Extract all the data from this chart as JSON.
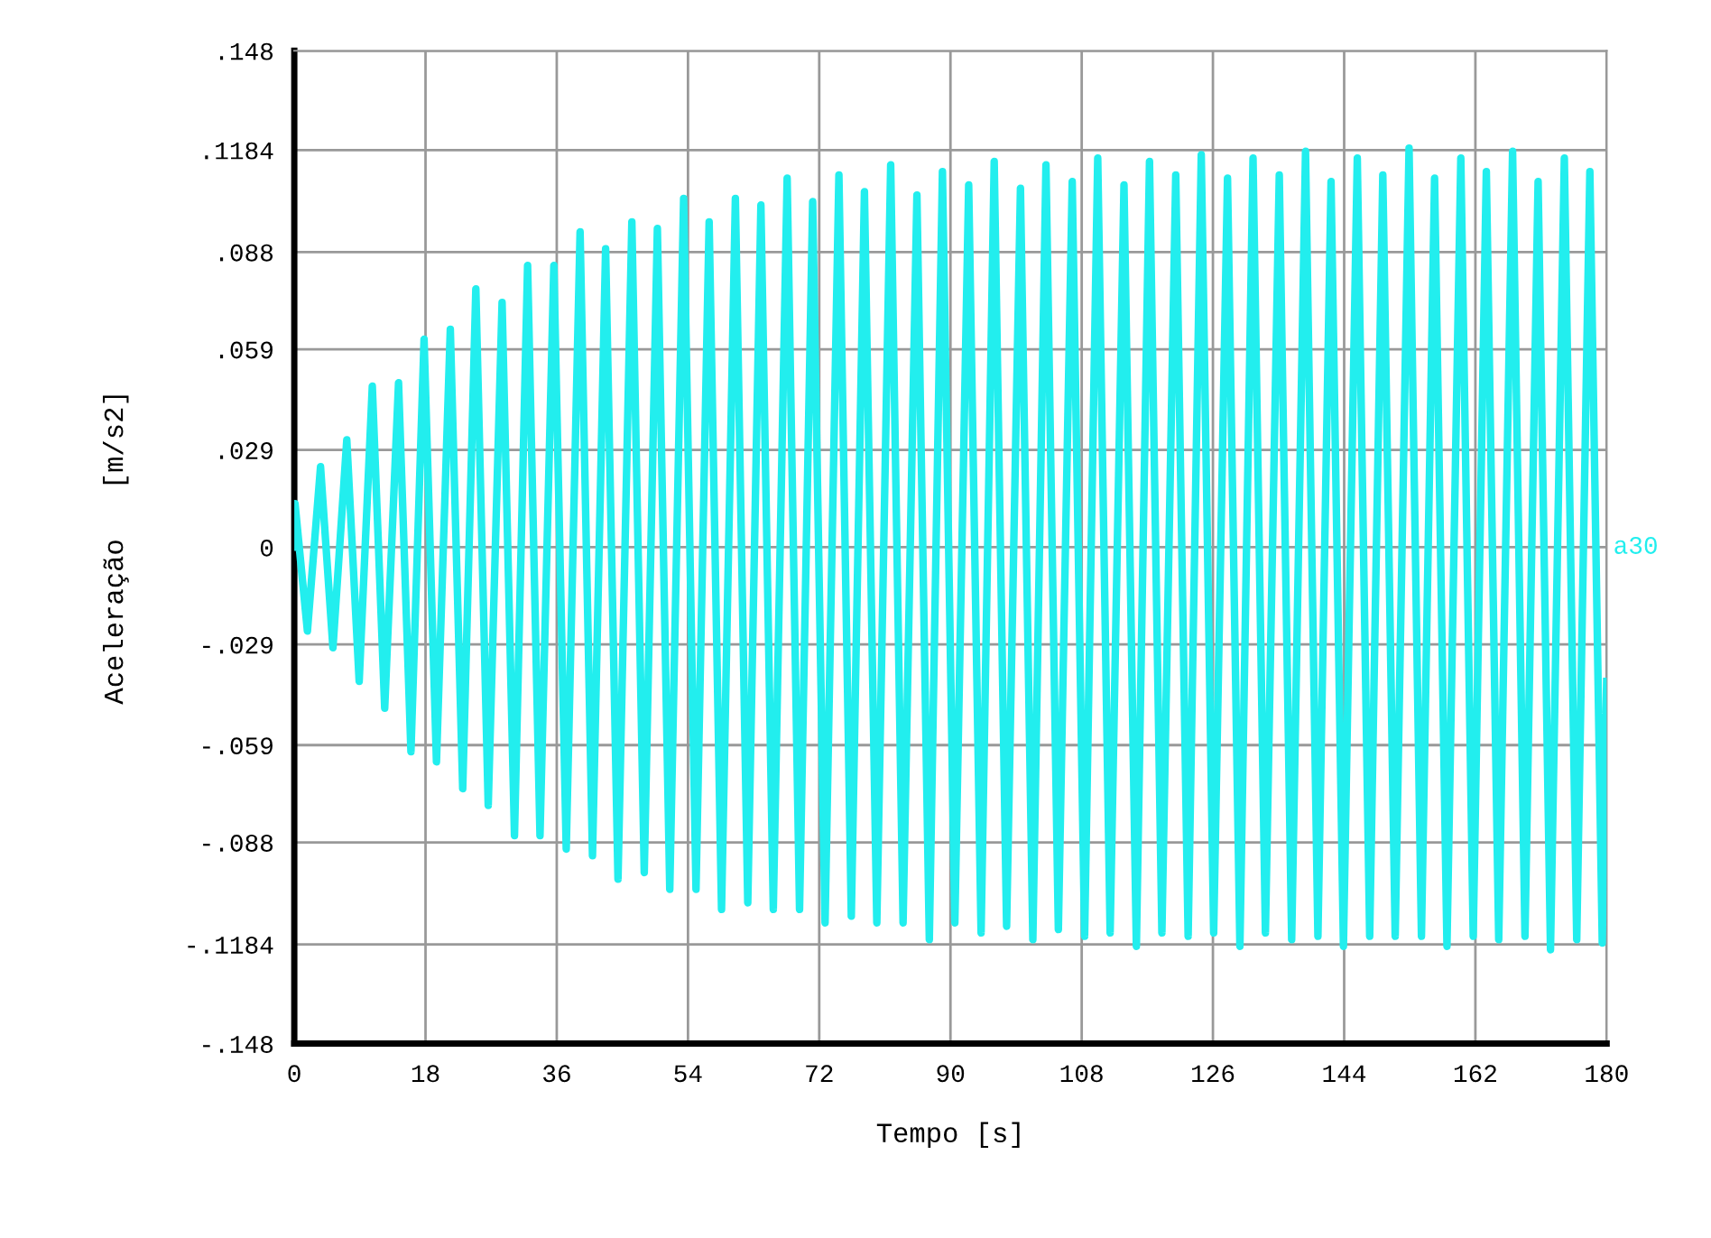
{
  "chart_data": {
    "type": "line",
    "xlabel": "Tempo [s]",
    "ylabel": "Aceleração   [m/s2]",
    "xlim": [
      0,
      180
    ],
    "xticks": [
      0,
      18,
      36,
      54,
      72,
      90,
      108,
      126,
      144,
      162,
      180
    ],
    "ylim": [
      -0.148,
      0.148
    ],
    "yticks": [
      {
        "value": -0.148,
        "label": "-.148"
      },
      {
        "value": -0.1184,
        "label": "-.1184"
      },
      {
        "value": -0.088,
        "label": "-.088"
      },
      {
        "value": -0.059,
        "label": "-.059"
      },
      {
        "value": -0.029,
        "label": "-.029"
      },
      0,
      {
        "value": 0.029,
        "label": ".029"
      },
      {
        "value": 0.059,
        "label": ".059"
      },
      {
        "value": 0.088,
        "label": ".088"
      },
      {
        "value": 0.1184,
        "label": ".1184"
      },
      {
        "value": 0.148,
        "label": ".148"
      }
    ],
    "grid": true,
    "marker": "none",
    "line_style": "solid",
    "series": [
      {
        "name": "a30",
        "color": "#22eeee",
        "x": [
          0,
          0.1,
          1.8,
          3.6,
          5.3,
          7.2,
          8.9,
          10.7,
          12.4,
          14.3,
          16.0,
          17.8,
          19.5,
          21.4,
          23.1,
          24.9,
          26.6,
          28.5,
          30.2,
          32.0,
          33.7,
          35.6,
          37.3,
          39.2,
          40.9,
          42.7,
          44.4,
          46.3,
          48.0,
          49.8,
          51.5,
          53.4,
          55.1,
          56.9,
          58.6,
          60.5,
          62.2,
          64.0,
          65.7,
          67.6,
          69.3,
          71.1,
          72.8,
          74.7,
          76.4,
          78.2,
          79.9,
          81.8,
          83.5,
          85.4,
          87.1,
          88.9,
          90.6,
          92.5,
          94.2,
          96.0,
          97.7,
          99.6,
          101.3,
          103.1,
          104.8,
          106.7,
          108.4,
          110.2,
          111.9,
          113.8,
          115.5,
          117.3,
          119.0,
          120.9,
          122.6,
          124.4,
          126.1,
          128.0,
          129.7,
          131.5,
          133.2,
          135.1,
          136.8,
          138.7,
          140.4,
          142.2,
          143.9,
          145.8,
          147.5,
          149.3,
          151.0,
          152.9,
          154.6,
          156.4,
          158.1,
          160.0,
          161.7,
          163.5,
          165.2,
          167.1,
          168.8,
          170.6,
          172.3,
          174.2,
          175.9,
          177.7,
          179.4,
          180
        ],
        "values": [
          0,
          0.013,
          -0.025,
          0.024,
          -0.03,
          0.032,
          -0.04,
          0.048,
          -0.048,
          0.049,
          -0.061,
          0.062,
          -0.064,
          0.065,
          -0.072,
          0.077,
          -0.077,
          0.073,
          -0.086,
          0.084,
          -0.086,
          0.084,
          -0.09,
          0.094,
          -0.092,
          0.089,
          -0.099,
          0.097,
          -0.097,
          0.095,
          -0.102,
          0.104,
          -0.102,
          0.097,
          -0.108,
          0.104,
          -0.106,
          0.102,
          -0.108,
          0.11,
          -0.108,
          0.103,
          -0.112,
          0.111,
          -0.11,
          0.106,
          -0.112,
          0.114,
          -0.112,
          0.105,
          -0.117,
          0.112,
          -0.112,
          0.108,
          -0.115,
          0.115,
          -0.113,
          0.107,
          -0.117,
          0.114,
          -0.114,
          0.109,
          -0.116,
          0.116,
          -0.115,
          0.108,
          -0.119,
          0.115,
          -0.115,
          0.111,
          -0.116,
          0.117,
          -0.115,
          0.11,
          -0.119,
          0.116,
          -0.115,
          0.111,
          -0.117,
          0.118,
          -0.116,
          0.109,
          -0.119,
          0.116,
          -0.116,
          0.111,
          -0.116,
          0.119,
          -0.116,
          0.11,
          -0.119,
          0.116,
          -0.116,
          0.112,
          -0.117,
          0.118,
          -0.116,
          0.109,
          -0.12,
          0.116,
          -0.117,
          0.112,
          -0.118,
          -0.04
        ]
      }
    ]
  }
}
